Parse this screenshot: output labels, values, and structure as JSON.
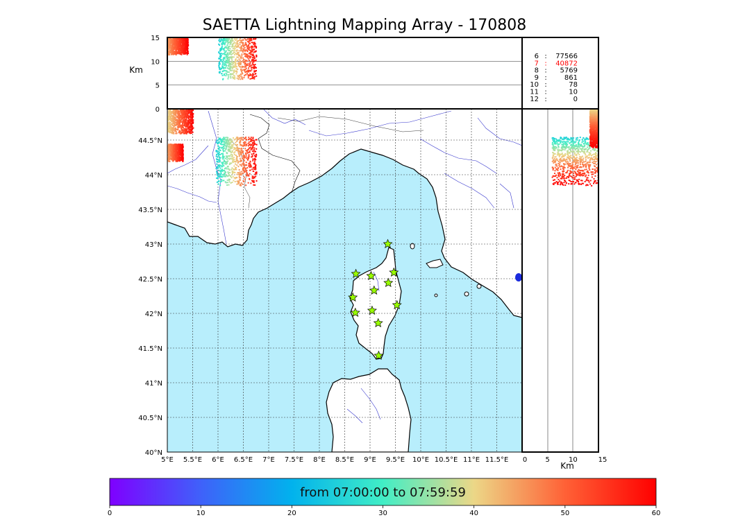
{
  "title": "SAETTA Lightning Mapping Array - 170808",
  "colorbar": {
    "label": "from 07:00:00 to 07:59:59",
    "ticks": [
      "0",
      "10",
      "20",
      "30",
      "40",
      "50",
      "60"
    ],
    "range": [
      0,
      60
    ]
  },
  "colors": {
    "sea": "#b8eefc",
    "frame": "#000000",
    "rivers": "#3333cc",
    "stations": "#99ff00",
    "highlight_count": "#ff0000"
  },
  "icons": [
    "station-star-icon"
  ],
  "chart_data": [
    {
      "type": "scatter",
      "panel": "plan view map",
      "xlabel": "",
      "ylabel": "",
      "x_ticks": [
        "5°E",
        "5.5°E",
        "6°E",
        "6.5°E",
        "7°E",
        "7.5°E",
        "8°E",
        "8.5°E",
        "9°E",
        "9.5°E",
        "10°E",
        "10.5°E",
        "11°E",
        "11.5°E"
      ],
      "y_ticks": [
        "40°N",
        "40.5°N",
        "41°N",
        "41.5°N",
        "42°N",
        "42.5°N",
        "43°N",
        "43.5°N",
        "44°N",
        "44.5°N"
      ],
      "xlim": [
        5,
        12
      ],
      "ylim": [
        40,
        44.95
      ],
      "grid": true,
      "stations": [
        {
          "lon": 9.35,
          "lat": 43.0
        },
        {
          "lon": 8.72,
          "lat": 42.57
        },
        {
          "lon": 9.02,
          "lat": 42.54
        },
        {
          "lon": 9.47,
          "lat": 42.59
        },
        {
          "lon": 9.36,
          "lat": 42.44
        },
        {
          "lon": 9.08,
          "lat": 42.33
        },
        {
          "lon": 8.66,
          "lat": 42.23
        },
        {
          "lon": 9.53,
          "lat": 42.12
        },
        {
          "lon": 8.71,
          "lat": 42.01
        },
        {
          "lon": 9.04,
          "lat": 42.04
        },
        {
          "lon": 9.16,
          "lat": 41.86
        },
        {
          "lon": 9.17,
          "lat": 41.39
        }
      ],
      "clusters": [
        {
          "lon_range": [
            5.0,
            5.5
          ],
          "lat_range": [
            44.6,
            44.95
          ],
          "time_range": [
            40,
            60
          ]
        },
        {
          "lon_range": [
            5.0,
            5.3
          ],
          "lat_range": [
            44.2,
            44.45
          ],
          "time_range": [
            45,
            60
          ]
        },
        {
          "lon_range": [
            5.95,
            6.75
          ],
          "lat_range": [
            43.85,
            44.55
          ],
          "time_range": [
            25,
            60
          ]
        }
      ]
    },
    {
      "type": "scatter",
      "panel": "longitude-altitude",
      "ylabel": "Km",
      "y_ticks": [
        "0",
        "5",
        "10",
        "15"
      ],
      "ylim": [
        0,
        15
      ],
      "xlim": [
        5,
        12
      ],
      "clusters": [
        {
          "lon_range": [
            5.0,
            5.4
          ],
          "alt_range": [
            11.5,
            15
          ],
          "time_range": [
            45,
            60
          ]
        },
        {
          "lon_range": [
            6.0,
            6.75
          ],
          "alt_range": [
            6.2,
            15
          ],
          "time_range": [
            25,
            60
          ]
        }
      ]
    },
    {
      "type": "scatter",
      "panel": "altitude-latitude",
      "xlabel": "Km",
      "x_ticks": [
        "0",
        "5",
        "10",
        "15"
      ],
      "xlim": [
        0,
        15
      ],
      "ylim": [
        40,
        44.95
      ],
      "clusters": [
        {
          "alt_range": [
            5.8,
            15
          ],
          "lat_range": [
            43.85,
            44.55
          ],
          "time_range": [
            25,
            60
          ]
        },
        {
          "alt_range": [
            13.2,
            15
          ],
          "lat_range": [
            44.4,
            44.95
          ],
          "time_range": [
            40,
            60
          ]
        }
      ]
    },
    {
      "type": "table",
      "panel": "station-count histogram",
      "rows": [
        {
          "stations": "6",
          "sep": ":",
          "count": "77566",
          "highlight": false
        },
        {
          "stations": "7",
          "sep": ":",
          "count": "40872",
          "highlight": true
        },
        {
          "stations": "8",
          "sep": ":",
          "count": "5769",
          "highlight": false
        },
        {
          "stations": "9",
          "sep": ":",
          "count": "861",
          "highlight": false
        },
        {
          "stations": "10",
          "sep": ":",
          "count": "78",
          "highlight": false
        },
        {
          "stations": "11",
          "sep": ":",
          "count": "10",
          "highlight": false
        },
        {
          "stations": "12",
          "sep": ":",
          "count": "0",
          "highlight": false
        }
      ]
    }
  ]
}
